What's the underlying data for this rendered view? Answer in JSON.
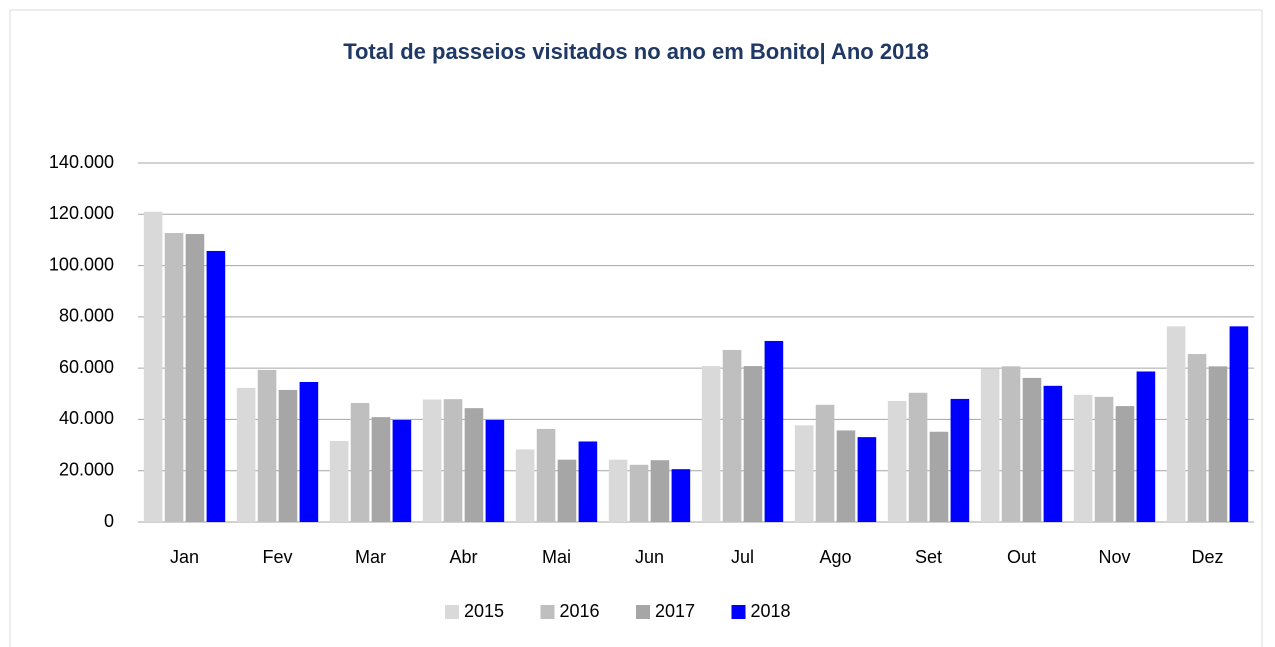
{
  "chart_data": {
    "type": "bar",
    "title": "Total de passeios visitados no ano em Bonito| Ano 2018",
    "categories": [
      "Jan",
      "Fev",
      "Mar",
      "Abr",
      "Mai",
      "Jun",
      "Jul",
      "Ago",
      "Set",
      "Out",
      "Nov",
      "Dez"
    ],
    "series": [
      {
        "name": "2015",
        "color": "#d9d9d9",
        "values": [
          121000,
          52300,
          31600,
          47800,
          28300,
          24300,
          60800,
          37700,
          47200,
          59700,
          49600,
          76300
        ]
      },
      {
        "name": "2016",
        "color": "#bfbfbf",
        "values": [
          112700,
          59300,
          46400,
          47900,
          36300,
          22300,
          67100,
          45700,
          50400,
          60700,
          48800,
          65500
        ]
      },
      {
        "name": "2017",
        "color": "#a6a6a6",
        "values": [
          112300,
          51500,
          40900,
          44400,
          24300,
          24100,
          60800,
          35700,
          35200,
          56200,
          45200,
          60700
        ]
      },
      {
        "name": "2018",
        "color": "#0000ff",
        "values": [
          105700,
          54600,
          39800,
          39800,
          31400,
          20600,
          70600,
          33100,
          48000,
          53100,
          58700,
          76300
        ]
      }
    ],
    "ylim": [
      0,
      140000
    ],
    "yticks": [
      0,
      {
        "value": 20000,
        "label": "20.000"
      },
      {
        "value": 40000,
        "label": "40.000"
      },
      {
        "value": 60000,
        "label": "60.000"
      },
      {
        "value": 80000,
        "label": "80.000"
      },
      {
        "value": 100000,
        "label": "100.000"
      },
      {
        "value": 120000,
        "label": "120.000"
      },
      {
        "value": 140000,
        "label": "140.000"
      }
    ],
    "grid": true,
    "legend": "bottom"
  }
}
